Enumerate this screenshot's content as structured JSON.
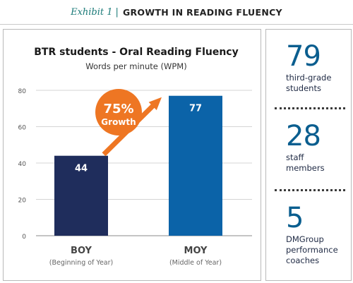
{
  "header": {
    "exhibit": "Exhibit 1",
    "separator": "|",
    "title": "GROWTH IN READING FLUENCY"
  },
  "chart_data": {
    "type": "bar",
    "title": "BTR students - Oral Reading Fluency",
    "subtitle": "Words per minute (WPM)",
    "categories": [
      "BOY",
      "MOY"
    ],
    "category_sublabels": [
      "(Beginning of Year)",
      "(Middle of Year)"
    ],
    "values": [
      44,
      77
    ],
    "data_labels": [
      "44",
      "77"
    ],
    "yticks": [
      0,
      20,
      40,
      60,
      80
    ],
    "ylim": [
      0,
      80
    ],
    "grid": true,
    "bar_colors": [
      "#1f2d5c",
      "#0b63a8"
    ],
    "annotation": {
      "value": "75%",
      "label": "Growth",
      "color": "#ee7623"
    }
  },
  "stats": [
    {
      "number": "79",
      "label_lines": [
        "third-grade",
        "students"
      ]
    },
    {
      "number": "28",
      "label_lines": [
        "staff",
        "members"
      ]
    },
    {
      "number": "5",
      "label_lines": [
        "DMGroup",
        "performance",
        "coaches"
      ]
    }
  ],
  "colors": {
    "accent_teal": "#1a7a78",
    "stat_blue": "#0a5e8f",
    "arrow_orange": "#ee7623"
  }
}
